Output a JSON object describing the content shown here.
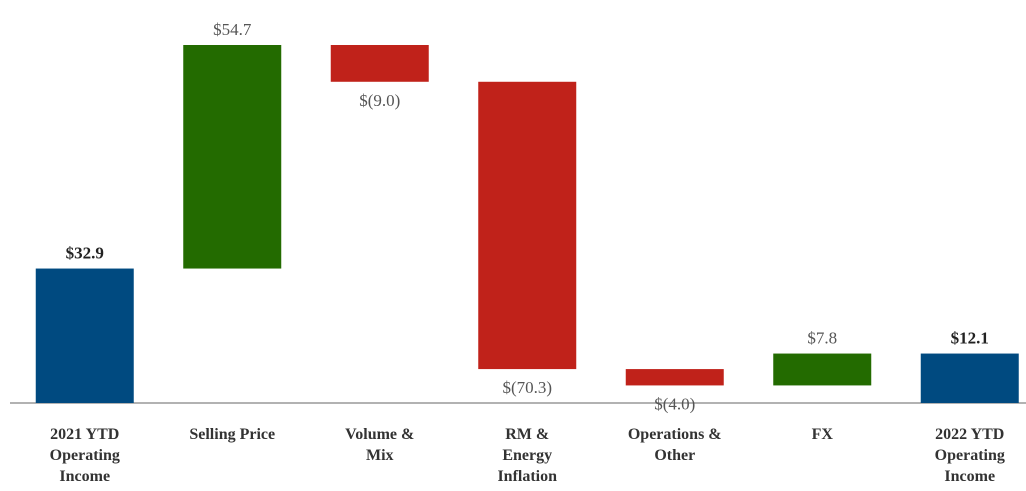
{
  "chart_data": {
    "type": "waterfall",
    "categories": [
      "2021 YTD Operating Income",
      "Selling Price",
      "Volume & Mix",
      "RM & Energy Inflation",
      "Operations & Other",
      "FX",
      "2022 YTD Operating Income"
    ],
    "values": [
      32.9,
      54.7,
      -9.0,
      -70.3,
      -4.0,
      7.8,
      12.1
    ],
    "value_labels": [
      "$32.9",
      "$54.7",
      "$(9.0)",
      "$(70.3)",
      "$(4.0)",
      "$7.8",
      "$12.1"
    ],
    "is_total": [
      true,
      false,
      false,
      false,
      false,
      false,
      true
    ],
    "colors": [
      "#004a80",
      "#236b00",
      "#c0221a",
      "#c0221a",
      "#c0221a",
      "#236b00",
      "#004a80"
    ]
  }
}
